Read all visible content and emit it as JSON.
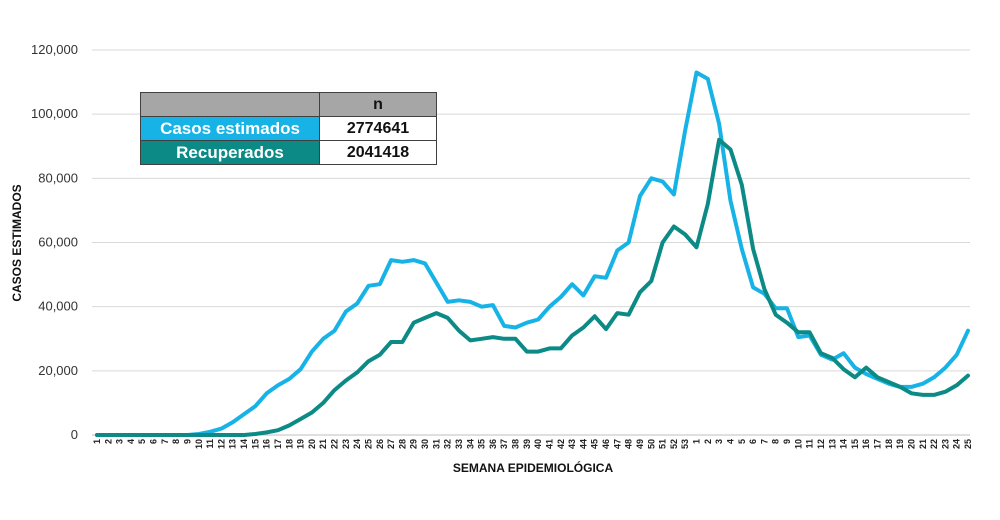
{
  "chart_data": {
    "type": "line",
    "xlabel": "SEMANA EPIDEMIOLÓGICA",
    "ylabel": "CASOS ESTIMADOS",
    "ylim": [
      0,
      120000
    ],
    "yticks": [
      "0",
      "20,000",
      "40,000",
      "60,000",
      "80,000",
      "100,000",
      "120,000"
    ],
    "ytick_values": [
      0,
      20000,
      40000,
      60000,
      80000,
      100000,
      120000
    ],
    "grid": true,
    "legend_position": "top-left",
    "categories": [
      "1",
      "2",
      "3",
      "4",
      "5",
      "6",
      "7",
      "8",
      "9",
      "10",
      "11",
      "12",
      "13",
      "14",
      "15",
      "16",
      "17",
      "18",
      "19",
      "20",
      "21",
      "22",
      "23",
      "24",
      "25",
      "26",
      "27",
      "28",
      "29",
      "30",
      "31",
      "32",
      "33",
      "34",
      "35",
      "36",
      "37",
      "38",
      "39",
      "40",
      "41",
      "42",
      "43",
      "44",
      "45",
      "46",
      "47",
      "48",
      "49",
      "50",
      "51",
      "52",
      "53",
      "1",
      "2",
      "3",
      "4",
      "5",
      "6",
      "7",
      "8",
      "9",
      "10",
      "11",
      "12",
      "13",
      "14",
      "15",
      "16",
      "17",
      "18",
      "19",
      "20",
      "21",
      "22",
      "23",
      "24",
      "25"
    ],
    "series": [
      {
        "name": "Casos estimados",
        "color": "#17b3e6",
        "total": "2774641",
        "values": [
          0,
          0,
          0,
          0,
          0,
          0,
          0,
          0,
          0,
          300,
          1000,
          2000,
          4000,
          6500,
          9000,
          13000,
          15500,
          17500,
          20500,
          26000,
          30000,
          32500,
          38500,
          41000,
          46500,
          47000,
          54500,
          54000,
          54500,
          53500,
          47500,
          41500,
          42000,
          41500,
          40000,
          40500,
          34000,
          33500,
          35000,
          36000,
          40000,
          43000,
          47000,
          43500,
          49500,
          49000,
          57500,
          60000,
          74500,
          80000,
          79000,
          75000,
          95000,
          113000,
          111000,
          97000,
          73000,
          58000,
          46000,
          44000,
          39500,
          39500,
          30500,
          31000,
          25000,
          23500,
          25500,
          21000,
          19000,
          17500,
          16000,
          15000,
          15000,
          16000,
          18000,
          21000,
          25000,
          32500
        ]
      },
      {
        "name": "Recuperados",
        "color": "#0b8a86",
        "total": "2041418",
        "values": [
          0,
          0,
          0,
          0,
          0,
          0,
          0,
          0,
          0,
          0,
          0,
          0,
          0,
          0,
          300,
          800,
          1500,
          3000,
          5000,
          7000,
          10000,
          14000,
          17000,
          19500,
          23000,
          25000,
          29000,
          29000,
          35000,
          36500,
          38000,
          36500,
          32500,
          29500,
          30000,
          30500,
          30000,
          30000,
          26000,
          26000,
          27000,
          27000,
          31000,
          33500,
          37000,
          33000,
          38000,
          37500,
          44500,
          48000,
          60000,
          65000,
          62500,
          58500,
          72000,
          92000,
          89000,
          78000,
          58000,
          45500,
          37500,
          35000,
          32000,
          32000,
          25500,
          24000,
          20500,
          18000,
          21000,
          18000,
          16500,
          15000,
          13000,
          12500,
          12500,
          13500,
          15500,
          18500
        ]
      }
    ]
  },
  "legend_table": {
    "header_n": "n",
    "rows": [
      {
        "label": "Casos estimados",
        "value": "2774641",
        "color": "#17b3e6"
      },
      {
        "label": "Recuperados",
        "value": "2041418",
        "color": "#0b8a86"
      }
    ]
  }
}
